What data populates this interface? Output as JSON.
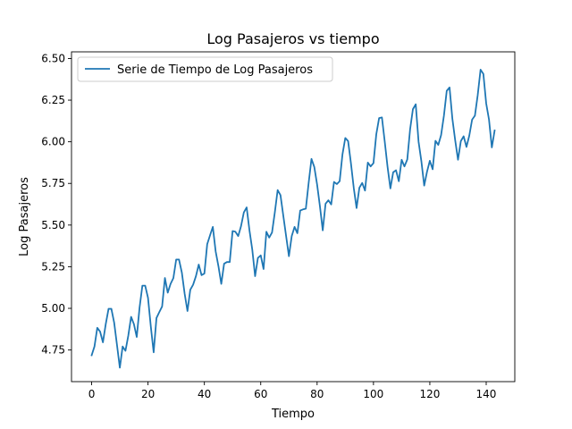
{
  "chart_data": {
    "type": "line",
    "title": "Log Pasajeros vs tiempo",
    "xlabel": "Tiempo",
    "ylabel": "Log Pasajeros",
    "xlim": [
      -7.15,
      150.15
    ],
    "ylim": [
      4.56,
      6.54
    ],
    "x_ticks": [
      0,
      20,
      40,
      60,
      80,
      100,
      120,
      140
    ],
    "x_tick_labels": [
      "0",
      "20",
      "40",
      "60",
      "80",
      "100",
      "120",
      "140"
    ],
    "y_ticks": [
      4.75,
      5.0,
      5.25,
      5.5,
      5.75,
      6.0,
      6.25,
      6.5
    ],
    "y_tick_labels": [
      "4.75",
      "5.00",
      "5.25",
      "5.50",
      "5.75",
      "6.00",
      "6.25",
      "6.50"
    ],
    "grid": false,
    "legend_position": "top-left",
    "colors": {
      "series": "#1f77b4",
      "axes": "#000000",
      "legend_border": "#cccccc"
    },
    "series": [
      {
        "name": "Serie de Tiempo de Log Pasajeros",
        "x": [
          0,
          1,
          2,
          3,
          4,
          5,
          6,
          7,
          8,
          9,
          10,
          11,
          12,
          13,
          14,
          15,
          16,
          17,
          18,
          19,
          20,
          21,
          22,
          23,
          24,
          25,
          26,
          27,
          28,
          29,
          30,
          31,
          32,
          33,
          34,
          35,
          36,
          37,
          38,
          39,
          40,
          41,
          42,
          43,
          44,
          45,
          46,
          47,
          48,
          49,
          50,
          51,
          52,
          53,
          54,
          55,
          56,
          57,
          58,
          59,
          60,
          61,
          62,
          63,
          64,
          65,
          66,
          67,
          68,
          69,
          70,
          71,
          72,
          73,
          74,
          75,
          76,
          77,
          78,
          79,
          80,
          81,
          82,
          83,
          84,
          85,
          86,
          87,
          88,
          89,
          90,
          91,
          92,
          93,
          94,
          95,
          96,
          97,
          98,
          99,
          100,
          101,
          102,
          103,
          104,
          105,
          106,
          107,
          108,
          109,
          110,
          111,
          112,
          113,
          114,
          115,
          116,
          117,
          118,
          119,
          120,
          121,
          122,
          123,
          124,
          125,
          126,
          127,
          128,
          129,
          130,
          131,
          132,
          133,
          134,
          135,
          136,
          137,
          138,
          139,
          140,
          141,
          142,
          143
        ],
        "values": [
          4.718,
          4.771,
          4.883,
          4.86,
          4.796,
          4.905,
          4.997,
          4.997,
          4.913,
          4.779,
          4.644,
          4.771,
          4.745,
          4.836,
          4.949,
          4.905,
          4.828,
          5.004,
          5.136,
          5.136,
          5.063,
          4.89,
          4.736,
          4.942,
          4.977,
          5.011,
          5.182,
          5.094,
          5.147,
          5.182,
          5.293,
          5.293,
          5.215,
          5.088,
          4.984,
          5.112,
          5.142,
          5.193,
          5.263,
          5.199,
          5.209,
          5.385,
          5.438,
          5.489,
          5.342,
          5.252,
          5.147,
          5.268,
          5.278,
          5.278,
          5.464,
          5.46,
          5.434,
          5.493,
          5.576,
          5.606,
          5.468,
          5.352,
          5.193,
          5.303,
          5.318,
          5.236,
          5.46,
          5.425,
          5.455,
          5.576,
          5.71,
          5.68,
          5.557,
          5.434,
          5.313,
          5.434,
          5.489,
          5.451,
          5.587,
          5.594,
          5.598,
          5.753,
          5.897,
          5.849,
          5.743,
          5.613,
          5.468,
          5.628,
          5.649,
          5.624,
          5.759,
          5.746,
          5.763,
          5.924,
          6.023,
          6.004,
          5.872,
          5.724,
          5.602,
          5.724,
          5.753,
          5.707,
          5.875,
          5.852,
          5.872,
          6.045,
          6.142,
          6.146,
          6.001,
          5.849,
          5.72,
          5.817,
          5.829,
          5.763,
          5.892,
          5.852,
          5.894,
          6.075,
          6.196,
          6.225,
          6.001,
          5.883,
          5.737,
          5.82,
          5.886,
          5.835,
          6.006,
          5.981,
          6.04,
          6.157,
          6.306,
          6.326,
          6.138,
          6.009,
          5.892,
          6.004,
          6.033,
          5.969,
          6.037,
          6.133,
          6.157,
          6.282,
          6.433,
          6.407,
          6.23,
          6.133,
          5.966,
          6.068
        ]
      }
    ]
  }
}
